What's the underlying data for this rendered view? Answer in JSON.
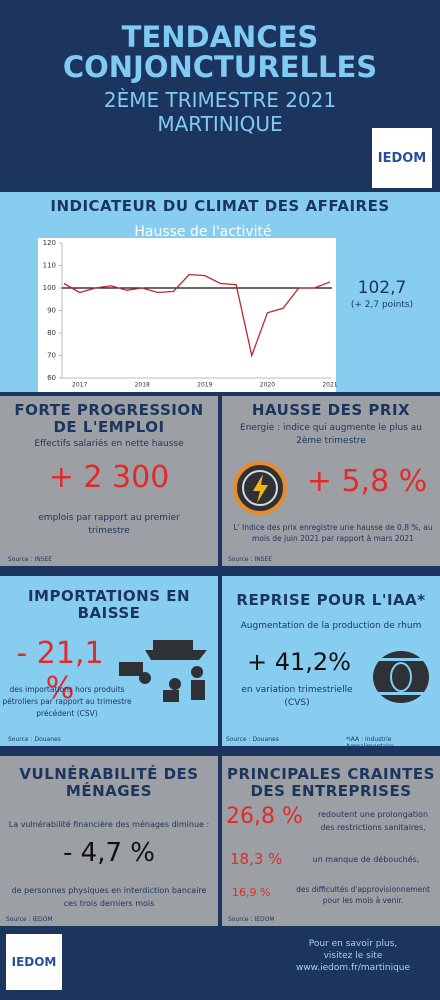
{
  "header": {
    "title": "TENDANCES CONJONCTURELLES",
    "subtitle": "2ÈME TRIMESTRE 2021",
    "region": "MARTINIQUE",
    "logo": "IEDOM"
  },
  "climat": {
    "title": "INDICATEUR DU CLIMAT DES AFFAIRES",
    "value": "102,7",
    "change": "(+ 2,7 points)"
  },
  "chart_data": {
    "type": "line",
    "title": "Hausse de l'activité",
    "categories": [
      null,
      "2017",
      null,
      null,
      null,
      "2018",
      null,
      null,
      null,
      "2019",
      null,
      null,
      null,
      "2020",
      null,
      null,
      null,
      "2021"
    ],
    "values": [
      102,
      98,
      100,
      101,
      99,
      100,
      98,
      98.5,
      106,
      105.5,
      102,
      101.5,
      70,
      89,
      91,
      100,
      100,
      102.7
    ],
    "color": "#c0272d",
    "reference_line": 100,
    "reference_color": "#111111",
    "ylim": [
      60,
      120
    ],
    "yticks": [
      60,
      70,
      80,
      90,
      100,
      110,
      120
    ],
    "grid": false
  },
  "emploi": {
    "title": "FORTE PROGRESSION DE L'EMPLOI",
    "intro": "Effectifs salariés en nette hausse",
    "value": "+ 2 300",
    "text": "emplois par rapport au premier trimestre",
    "source": "Source : INSEE"
  },
  "prix": {
    "title": "HAUSSE DES PRIX",
    "intro": "Energie : indice qui augmente le plus au 2ème trimestre",
    "value": "+ 5,8 %",
    "text": "L' Indice des prix enregistre une hausse de 0,8 %, au mois de juin 2021 par rapport à mars 2021",
    "source": "Source : INSEE"
  },
  "importations": {
    "title": "IMPORTATIONS EN BAISSE",
    "value": "- 21,1 %",
    "text": "des importations hors produits pétroliers par rapport au trimestre précédent (CSV)",
    "source": "Source : Douanes"
  },
  "iaa": {
    "title": "REPRISE POUR L'IAA*",
    "intro": "Augmentation de la production de rhum",
    "value": "+ 41,2%",
    "text": "en variation trimestrielle (CVS)",
    "source": "Source :  Douanes",
    "note": "*IAA : Industrie Agroalimentaire"
  },
  "menages": {
    "title": "VULNÉRABILITÉ DES MÉNAGES",
    "intro": "La vulnérabilité financière des ménages diminue :",
    "value": "- 4,7 %",
    "text": "de personnes physiques en interdiction bancaire ces trois derniers mois",
    "source": "Source : IEDOM"
  },
  "craintes": {
    "title": "PRINCIPALES CRAINTES DES ENTREPRISES",
    "items": [
      {
        "value": "26,8 %",
        "text": "redoutent une prolongation des restrictions sanitaires,"
      },
      {
        "value": "18,3 %",
        "text": "un manque de débouchés,"
      },
      {
        "value": "16,9 %",
        "text": "des difficultés d'approvisionnement pour les mois à venir."
      }
    ],
    "source": "Source : IEDOM"
  },
  "footer": {
    "logo": "IEDOM",
    "lines": [
      "Pour en savoir plus,",
      "visitez le site",
      "www.iedom.fr/martinique"
    ]
  }
}
